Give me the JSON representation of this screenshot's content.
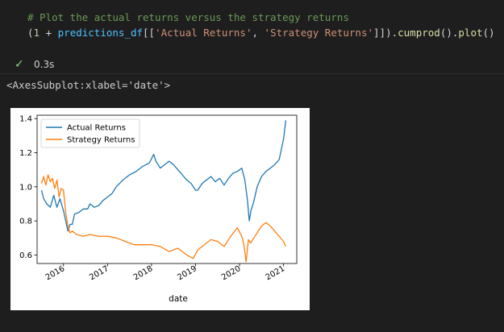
{
  "cell": {
    "comment": "# Plot the actual returns versus the strategy returns",
    "code": {
      "open_paren": "(",
      "one": "1",
      "plus": " + ",
      "var": "predictions_df",
      "bracket_open": "[[",
      "col1": "'Actual Returns'",
      "comma": ", ",
      "col2": "'Strategy Returns'",
      "bracket_close": "]])",
      "dot1": ".",
      "fn1": "cumprod",
      "call1": "()",
      "dot2": ".",
      "fn2": "plot",
      "call2": "()"
    },
    "status_icon": "check-icon",
    "exec_time": "0.3s"
  },
  "output": {
    "repr": "<AxesSubplot:xlabel='date'>"
  },
  "chart_data": {
    "type": "line",
    "title": "",
    "xlabel": "date",
    "ylabel": "",
    "x_ticks": [
      "2016",
      "2017",
      "2018",
      "2019",
      "2020",
      "2021"
    ],
    "y_ticks": [
      "0.6",
      "0.8",
      "1.0",
      "1.2",
      "1.4"
    ],
    "xlim": [
      2015.4,
      2021.3
    ],
    "ylim": [
      0.55,
      1.42
    ],
    "grid": false,
    "legend": "top-left",
    "series": [
      {
        "name": "Actual Returns",
        "color": "#1f77b4",
        "x": [
          2015.5,
          2015.55,
          2015.62,
          2015.7,
          2015.78,
          2015.85,
          2015.92,
          2016.0,
          2016.05,
          2016.1,
          2016.15,
          2016.2,
          2016.25,
          2016.35,
          2016.45,
          2016.55,
          2016.6,
          2016.7,
          2016.8,
          2016.9,
          2017.0,
          2017.1,
          2017.2,
          2017.35,
          2017.5,
          2017.65,
          2017.8,
          2017.95,
          2018.05,
          2018.1,
          2018.15,
          2018.2,
          2018.3,
          2018.4,
          2018.5,
          2018.6,
          2018.7,
          2018.8,
          2018.9,
          2019.0,
          2019.05,
          2019.15,
          2019.25,
          2019.35,
          2019.45,
          2019.55,
          2019.65,
          2019.75,
          2019.85,
          2019.95,
          2020.05,
          2020.12,
          2020.18,
          2020.22,
          2020.26,
          2020.32,
          2020.4,
          2020.5,
          2020.6,
          2020.7,
          2020.8,
          2020.9,
          2021.0,
          2021.05
        ],
        "y": [
          0.98,
          0.93,
          0.9,
          0.88,
          0.95,
          0.88,
          0.93,
          0.86,
          0.8,
          0.74,
          0.78,
          0.78,
          0.84,
          0.85,
          0.87,
          0.87,
          0.9,
          0.88,
          0.89,
          0.92,
          0.94,
          0.96,
          1.0,
          1.04,
          1.07,
          1.09,
          1.12,
          1.14,
          1.19,
          1.15,
          1.13,
          1.11,
          1.13,
          1.15,
          1.13,
          1.1,
          1.07,
          1.04,
          1.02,
          0.98,
          0.98,
          1.02,
          1.04,
          1.06,
          1.03,
          1.05,
          1.01,
          1.05,
          1.08,
          1.09,
          1.11,
          1.04,
          0.92,
          0.8,
          0.86,
          0.91,
          1.0,
          1.06,
          1.09,
          1.11,
          1.13,
          1.16,
          1.28,
          1.39
        ]
      },
      {
        "name": "Strategy Returns",
        "color": "#ff7f0e",
        "x": [
          2015.5,
          2015.55,
          2015.6,
          2015.65,
          2015.7,
          2015.75,
          2015.8,
          2015.85,
          2015.9,
          2015.95,
          2016.0,
          2016.05,
          2016.1,
          2016.15,
          2016.2,
          2016.3,
          2016.45,
          2016.6,
          2016.8,
          2017.0,
          2017.2,
          2017.4,
          2017.6,
          2017.8,
          2018.0,
          2018.2,
          2018.4,
          2018.6,
          2018.8,
          2018.95,
          2019.05,
          2019.2,
          2019.35,
          2019.5,
          2019.65,
          2019.8,
          2019.95,
          2020.05,
          2020.1,
          2020.15,
          2020.2,
          2020.25,
          2020.35,
          2020.5,
          2020.6,
          2020.7,
          2020.8,
          2020.9,
          2021.0,
          2021.05
        ],
        "y": [
          1.02,
          1.06,
          1.01,
          1.07,
          1.03,
          1.05,
          0.99,
          1.04,
          0.94,
          0.99,
          0.98,
          0.85,
          0.77,
          0.73,
          0.74,
          0.72,
          0.71,
          0.72,
          0.71,
          0.71,
          0.7,
          0.68,
          0.66,
          0.66,
          0.66,
          0.65,
          0.62,
          0.64,
          0.6,
          0.58,
          0.63,
          0.66,
          0.69,
          0.68,
          0.65,
          0.71,
          0.76,
          0.71,
          0.66,
          0.56,
          0.69,
          0.67,
          0.71,
          0.77,
          0.79,
          0.77,
          0.74,
          0.71,
          0.68,
          0.65
        ]
      }
    ]
  }
}
